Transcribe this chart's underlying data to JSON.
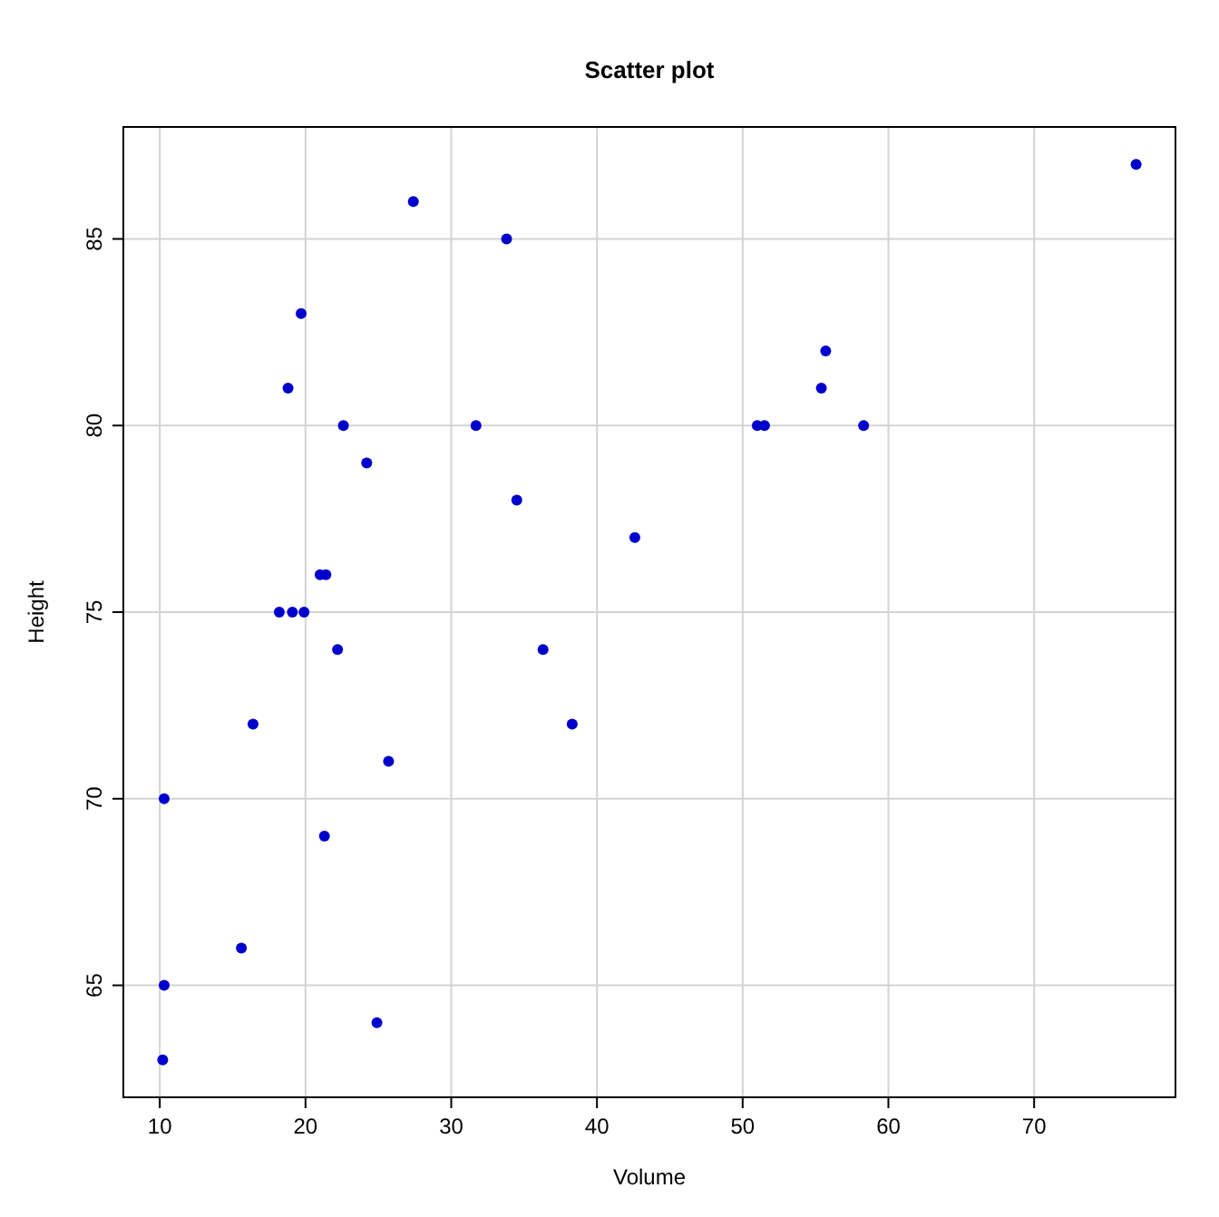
{
  "chart_data": {
    "type": "scatter",
    "title": "Scatter plot",
    "xlabel": "Volume",
    "ylabel": "Height",
    "x": [
      10.3,
      10.3,
      10.2,
      16.4,
      18.8,
      19.7,
      15.6,
      18.2,
      22.6,
      19.9,
      24.2,
      21.0,
      21.4,
      21.3,
      19.1,
      22.2,
      33.8,
      27.4,
      25.7,
      24.9,
      34.5,
      31.7,
      36.3,
      38.3,
      42.6,
      55.4,
      55.7,
      58.3,
      51.5,
      51.0,
      77.0
    ],
    "values": [
      70,
      65,
      63,
      72,
      81,
      83,
      66,
      75,
      80,
      75,
      79,
      76,
      76,
      69,
      75,
      74,
      85,
      86,
      71,
      64,
      78,
      80,
      74,
      72,
      77,
      81,
      82,
      80,
      80,
      80,
      87
    ],
    "color": "#0000cd",
    "marker": "circle",
    "grid": true,
    "xlim": [
      7.5,
      79.7
    ],
    "ylim": [
      62,
      88
    ],
    "xticks": [
      10,
      20,
      30,
      40,
      50,
      60,
      70
    ],
    "yticks": [
      65,
      70,
      75,
      80,
      85
    ]
  }
}
